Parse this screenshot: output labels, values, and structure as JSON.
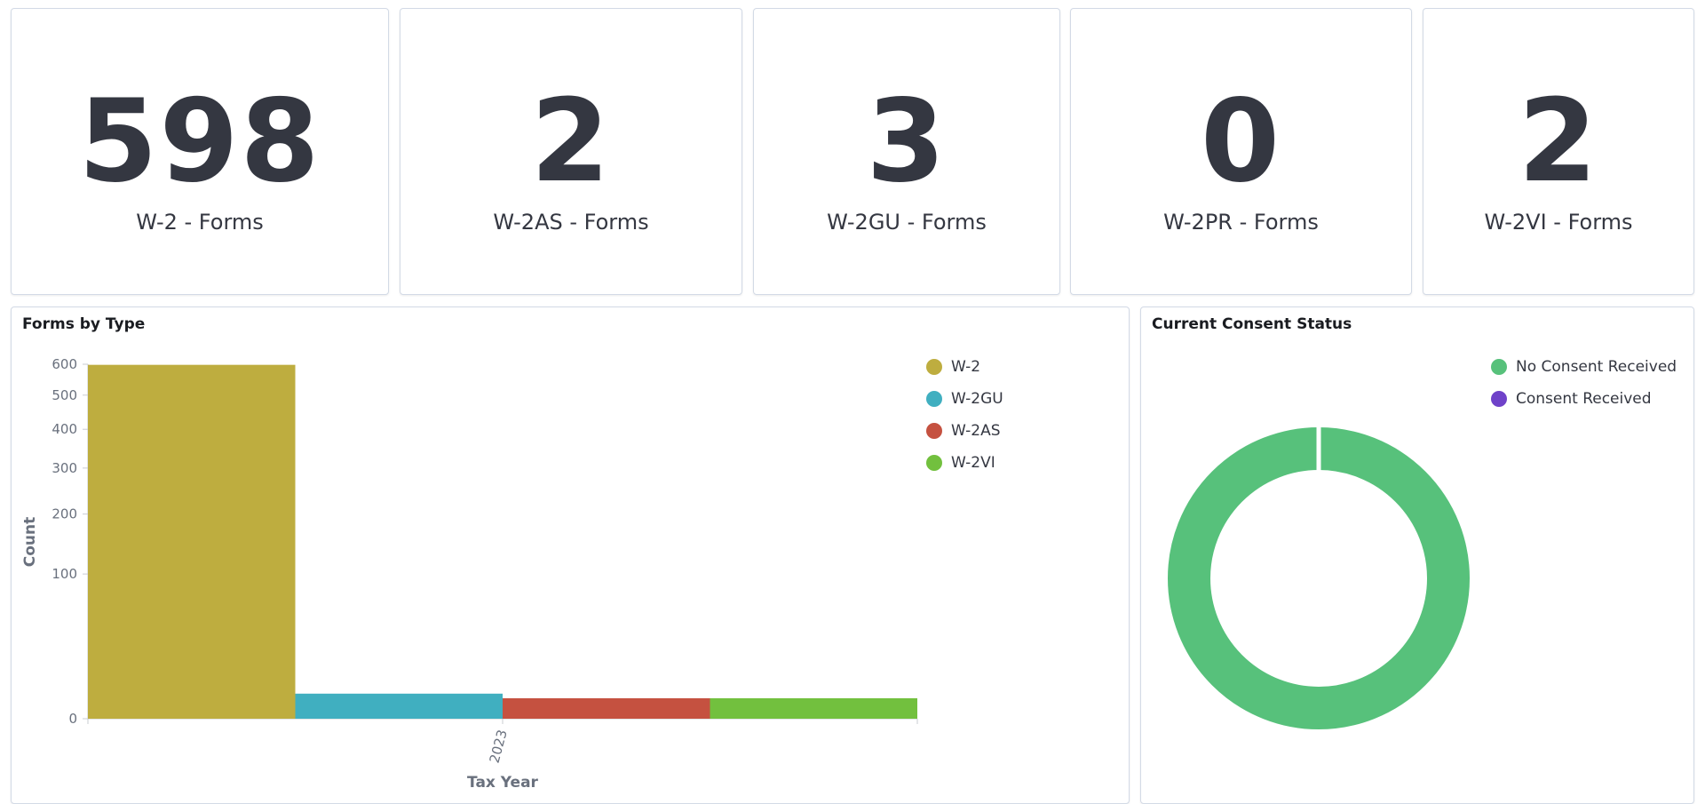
{
  "metrics": [
    {
      "value": "598",
      "label": "W-2 - Forms"
    },
    {
      "value": "2",
      "label": "W-2AS - Forms"
    },
    {
      "value": "3",
      "label": "W-2GU - Forms"
    },
    {
      "value": "0",
      "label": "W-2PR - Forms"
    },
    {
      "value": "2",
      "label": "W-2VI - Forms"
    }
  ],
  "forms_by_type": {
    "title": "Forms by Type",
    "legend": [
      {
        "label": "W-2",
        "color": "#bead3f"
      },
      {
        "label": "W-2GU",
        "color": "#40afc0"
      },
      {
        "label": "W-2AS",
        "color": "#c55140"
      },
      {
        "label": "W-2VI",
        "color": "#72c03e"
      }
    ]
  },
  "consent_status": {
    "title": "Current Consent Status",
    "legend": [
      {
        "label": "No Consent Received",
        "color": "#57c17b"
      },
      {
        "label": "Consent Received",
        "color": "#6f42c9"
      }
    ]
  },
  "chart_data": [
    {
      "type": "bar",
      "title": "Forms by Type",
      "xlabel": "Tax Year",
      "ylabel": "Count",
      "categories": [
        "2023"
      ],
      "series": [
        {
          "name": "W-2",
          "values": [
            598
          ],
          "color": "#bead3f"
        },
        {
          "name": "W-2GU",
          "values": [
            3
          ],
          "color": "#40afc0"
        },
        {
          "name": "W-2AS",
          "values": [
            2
          ],
          "color": "#c55140"
        },
        {
          "name": "W-2VI",
          "values": [
            2
          ],
          "color": "#72c03e"
        }
      ],
      "y_ticks": [
        "0",
        "100",
        "200",
        "300",
        "400",
        "500",
        "600"
      ],
      "y_scale": "sqrt",
      "ylim": [
        0,
        600
      ]
    },
    {
      "type": "pie",
      "title": "Current Consent Status",
      "labels": [
        "No Consent Received",
        "Consent Received"
      ],
      "values": [
        100,
        0
      ],
      "colors": [
        "#57c17b",
        "#6f42c9"
      ],
      "donut": true
    }
  ]
}
